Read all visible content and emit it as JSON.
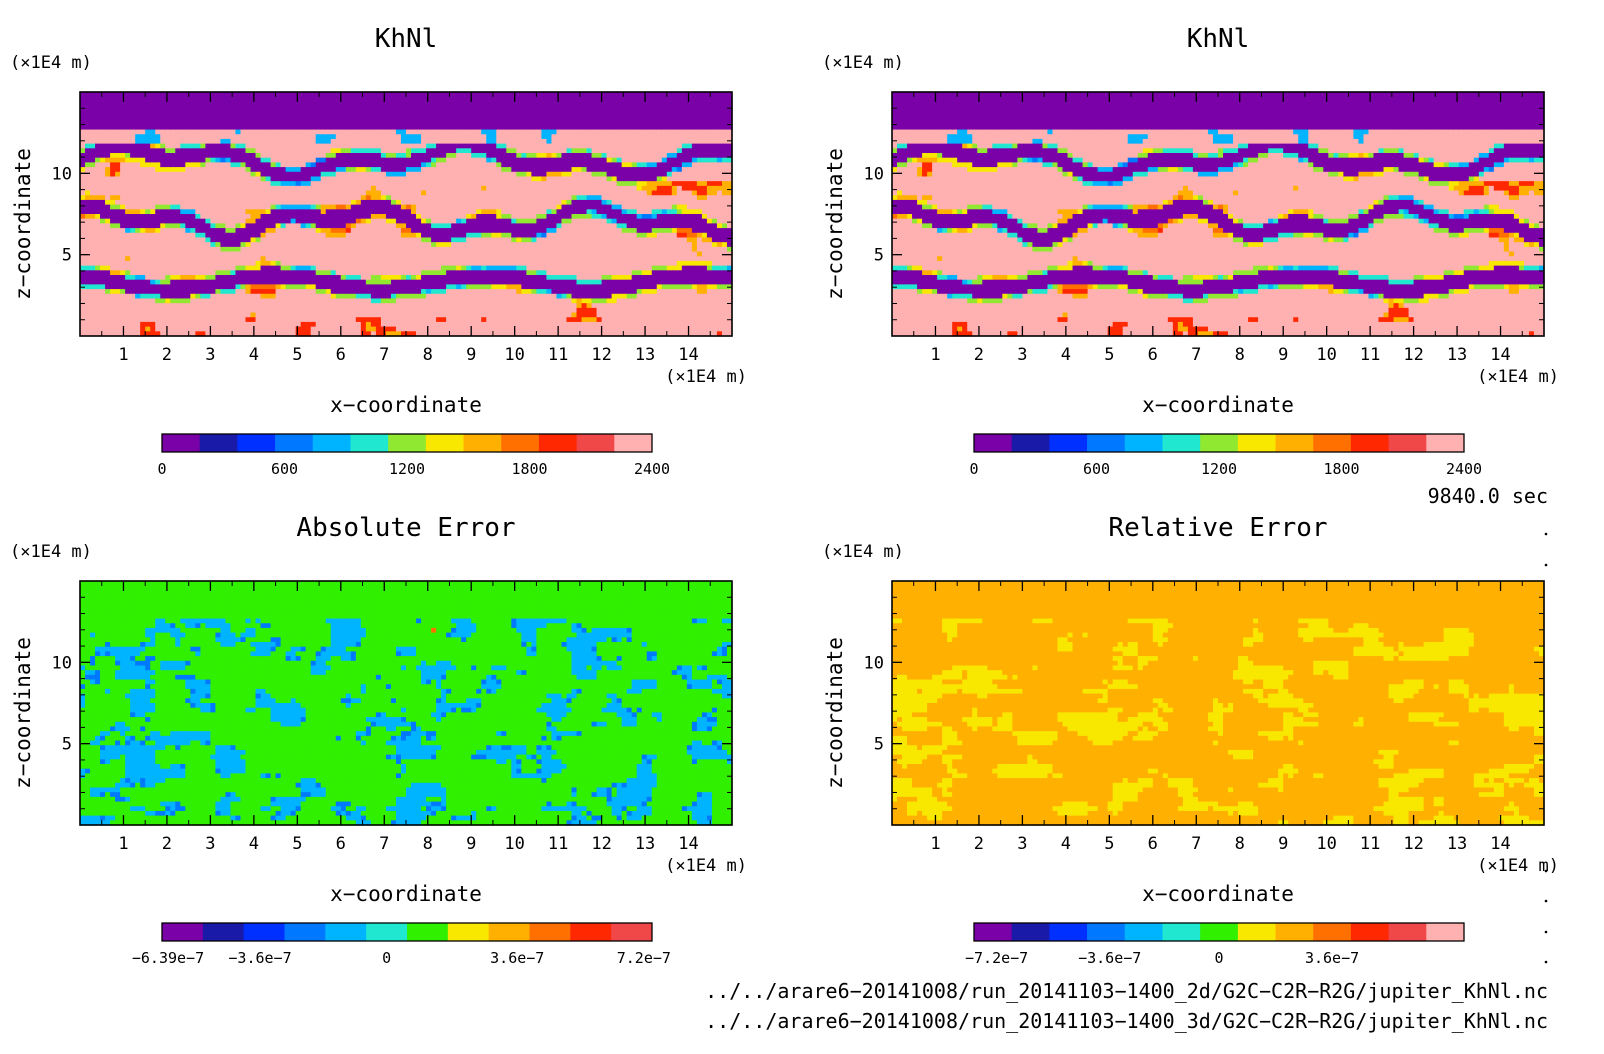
{
  "chart_data": [
    {
      "type": "heatmap",
      "title": "KhNl",
      "xlabel": "x−coordinate",
      "ylabel": "z−coordinate",
      "x_unit": "(×1E4 m)",
      "y_unit": "(×1E4 m)",
      "x_ticks": [
        1,
        2,
        3,
        4,
        5,
        6,
        7,
        8,
        9,
        10,
        11,
        12,
        13,
        14
      ],
      "y_ticks": [
        5,
        10
      ],
      "xlim": [
        0,
        15
      ],
      "ylim": [
        0,
        15
      ],
      "colorbar": {
        "labels": [
          "0",
          "600",
          "1200",
          "1800",
          "2400"
        ],
        "colors": [
          "#7a00a8",
          "#1a1aa8",
          "#0030ff",
          "#0078ff",
          "#00b4ff",
          "#20e8d0",
          "#90e830",
          "#f8e800",
          "#ffb000",
          "#ff7000",
          "#ff2800",
          "#f04848",
          "#ffb0b0"
        ]
      },
      "field": "khnl"
    },
    {
      "type": "heatmap",
      "title": "KhNl",
      "xlabel": "x−coordinate",
      "ylabel": "z−coordinate",
      "x_unit": "(×1E4 m)",
      "y_unit": "(×1E4 m)",
      "x_ticks": [
        1,
        2,
        3,
        4,
        5,
        6,
        7,
        8,
        9,
        10,
        11,
        12,
        13,
        14
      ],
      "y_ticks": [
        5,
        10
      ],
      "xlim": [
        0,
        15
      ],
      "ylim": [
        0,
        15
      ],
      "colorbar": {
        "labels": [
          "0",
          "600",
          "1200",
          "1800",
          "2400"
        ],
        "colors": [
          "#7a00a8",
          "#1a1aa8",
          "#0030ff",
          "#0078ff",
          "#00b4ff",
          "#20e8d0",
          "#90e830",
          "#f8e800",
          "#ffb000",
          "#ff7000",
          "#ff2800",
          "#f04848",
          "#ffb0b0"
        ]
      },
      "field": "khnl"
    },
    {
      "type": "heatmap",
      "title": "Absolute Error",
      "xlabel": "x−coordinate",
      "ylabel": "z−coordinate",
      "x_unit": "(×1E4 m)",
      "y_unit": "(×1E4 m)",
      "x_ticks": [
        1,
        2,
        3,
        4,
        5,
        6,
        7,
        8,
        9,
        10,
        11,
        12,
        13,
        14
      ],
      "y_ticks": [
        5,
        10
      ],
      "xlim": [
        0,
        15
      ],
      "ylim": [
        0,
        15
      ],
      "colorbar": {
        "labels": [
          "−6.39e−7",
          "−3.6e−7",
          "0",
          "3.6e−7",
          "7.2e−7"
        ],
        "colors": [
          "#7a00a8",
          "#1a1aa8",
          "#0030ff",
          "#0078ff",
          "#00b4ff",
          "#20e8d0",
          "#30f000",
          "#f8e800",
          "#ffb000",
          "#ff7000",
          "#ff2800",
          "#f04848"
        ]
      },
      "field": "abs"
    },
    {
      "type": "heatmap",
      "title": "Relative Error",
      "xlabel": "x−coordinate",
      "ylabel": "z−coordinate",
      "x_unit": "(×1E4 m)",
      "y_unit": "(×1E4 m)",
      "x_ticks": [
        1,
        2,
        3,
        4,
        5,
        6,
        7,
        8,
        9,
        10,
        11,
        12,
        13,
        14
      ],
      "y_ticks": [
        5,
        10
      ],
      "xlim": [
        0,
        15
      ],
      "ylim": [
        0,
        15
      ],
      "colorbar": {
        "labels": [
          "−7.2e−7",
          "−3.6e−7",
          "0",
          "3.6e−7"
        ],
        "colors": [
          "#7a00a8",
          "#1a1aa8",
          "#0030ff",
          "#0078ff",
          "#00b4ff",
          "#20e8d0",
          "#30f000",
          "#f8e800",
          "#ffb000",
          "#ff7000",
          "#ff2800",
          "#f04848",
          "#ffb0b0"
        ]
      },
      "field": "rel"
    }
  ],
  "time_label": "9840.0 sec",
  "file_lines": [
    "../../arare6−20141008/run_20141103−1400_2d/G2C−C2R−R2G/jupiter_KhNl.nc",
    "../../arare6−20141008/run_20141103−1400_3d/G2C−C2R−R2G/jupiter_KhNl.nc"
  ]
}
